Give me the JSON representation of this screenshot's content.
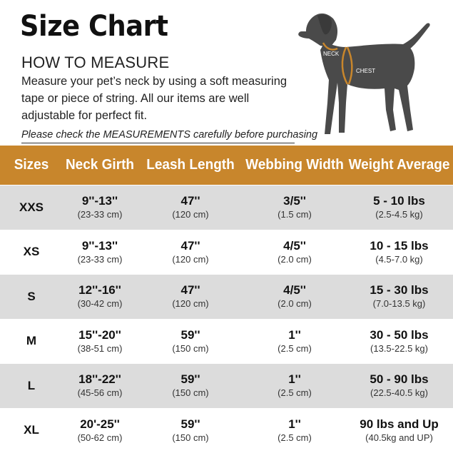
{
  "header": {
    "title": "Size Chart",
    "subtitle": "HOW TO MEASURE",
    "description": "Measure your pet’s neck by using a soft measuring tape or piece of string. All our items are well adjustable for perfect fit.",
    "note": "Please check the MEASUREMENTS carefully before purchasing"
  },
  "illustration": {
    "neck_label": "NECK",
    "chest_label": "CHEST",
    "strap_color": "#c8862c",
    "dog_color": "#4a4a4a"
  },
  "colors": {
    "header_bg": "#c8862c",
    "shade_row": "#dcdcdc"
  },
  "table": {
    "headers": [
      "Sizes",
      "Neck Girth",
      "Leash Length",
      "Webbing Width",
      "Weight Average"
    ],
    "rows": [
      {
        "size": "XXS",
        "neck": "9''-13''",
        "neck_cm": "(23-33 cm)",
        "leash": "47''",
        "leash_cm": "(120 cm)",
        "width": "3/5''",
        "width_cm": "(1.5 cm)",
        "weight": "5 - 10 lbs",
        "weight_kg": "(2.5-4.5 kg)"
      },
      {
        "size": "XS",
        "neck": "9''-13''",
        "neck_cm": "(23-33 cm)",
        "leash": "47''",
        "leash_cm": "(120 cm)",
        "width": "4/5''",
        "width_cm": "(2.0 cm)",
        "weight": "10 - 15 lbs",
        "weight_kg": "(4.5-7.0 kg)"
      },
      {
        "size": "S",
        "neck": "12''-16''",
        "neck_cm": "(30-42 cm)",
        "leash": "47''",
        "leash_cm": "(120 cm)",
        "width": "4/5''",
        "width_cm": "(2.0 cm)",
        "weight": "15 - 30 lbs",
        "weight_kg": "(7.0-13.5 kg)"
      },
      {
        "size": "M",
        "neck": "15''-20''",
        "neck_cm": "(38-51 cm)",
        "leash": "59''",
        "leash_cm": "(150 cm)",
        "width": "1''",
        "width_cm": "(2.5 cm)",
        "weight": "30 - 50 lbs",
        "weight_kg": "(13.5-22.5 kg)"
      },
      {
        "size": "L",
        "neck": "18''-22''",
        "neck_cm": "(45-56 cm)",
        "leash": "59''",
        "leash_cm": "(150 cm)",
        "width": "1''",
        "width_cm": "(2.5 cm)",
        "weight": "50 - 90 lbs",
        "weight_kg": "(22.5-40.5 kg)"
      },
      {
        "size": "XL",
        "neck": "20'-25''",
        "neck_cm": "(50-62 cm)",
        "leash": "59''",
        "leash_cm": "(150 cm)",
        "width": "1''",
        "width_cm": "(2.5 cm)",
        "weight": "90 lbs and Up",
        "weight_kg": "(40.5kg and UP)"
      }
    ]
  }
}
